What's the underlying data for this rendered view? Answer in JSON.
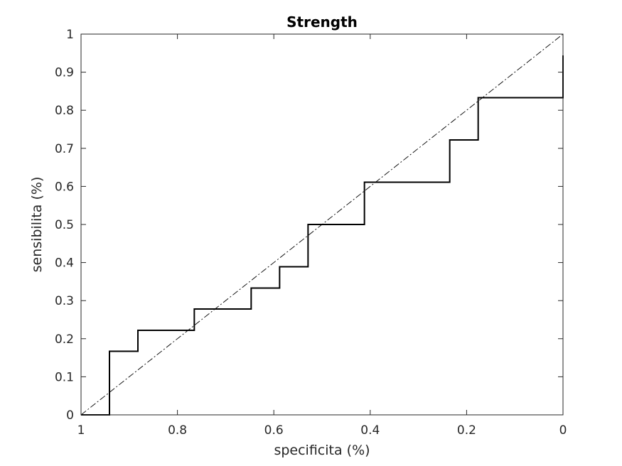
{
  "chart_data": {
    "type": "line",
    "title": "Strength",
    "xlabel": "specificita (%)",
    "ylabel": "sensibilita (%)",
    "xlim": [
      0,
      1
    ],
    "ylim": [
      0,
      1
    ],
    "x_reversed": true,
    "grid": false,
    "x_ticks": [
      1,
      0.8,
      0.6,
      0.4,
      0.2,
      0
    ],
    "x_tick_labels": [
      "1",
      "0.8",
      "0.6",
      "0.4",
      "0.2",
      "0"
    ],
    "y_ticks": [
      0,
      0.1,
      0.2,
      0.3,
      0.4,
      0.5,
      0.6,
      0.7,
      0.8,
      0.9,
      1
    ],
    "y_tick_labels": [
      "0",
      "0.1",
      "0.2",
      "0.3",
      "0.4",
      "0.5",
      "0.6",
      "0.7",
      "0.8",
      "0.9",
      "1"
    ],
    "series": [
      {
        "style": "step",
        "color": "#000000",
        "points": [
          [
            1,
            0
          ],
          [
            0.941,
            0
          ],
          [
            0.941,
            0.167
          ],
          [
            0.882,
            0.167
          ],
          [
            0.882,
            0.222
          ],
          [
            0.765,
            0.222
          ],
          [
            0.765,
            0.278
          ],
          [
            0.647,
            0.278
          ],
          [
            0.647,
            0.333
          ],
          [
            0.588,
            0.333
          ],
          [
            0.588,
            0.389
          ],
          [
            0.529,
            0.389
          ],
          [
            0.529,
            0.5
          ],
          [
            0.412,
            0.5
          ],
          [
            0.412,
            0.611
          ],
          [
            0.235,
            0.611
          ],
          [
            0.235,
            0.722
          ],
          [
            0.176,
            0.722
          ],
          [
            0.176,
            0.833
          ],
          [
            0,
            0.833
          ],
          [
            0,
            0.944
          ]
        ]
      },
      {
        "style": "dash-dot",
        "color": "#000000",
        "points": [
          [
            1,
            0
          ],
          [
            0,
            1
          ]
        ]
      }
    ]
  }
}
